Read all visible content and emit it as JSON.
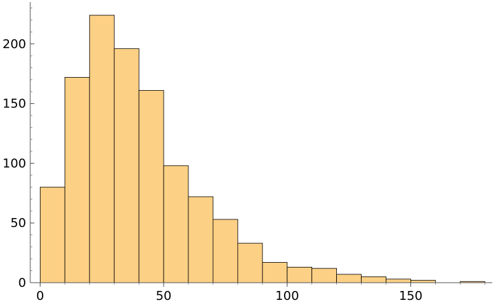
{
  "chart_data": {
    "type": "bar",
    "subtype": "histogram",
    "bin_edges": [
      0,
      10,
      20,
      30,
      40,
      50,
      60,
      70,
      80,
      90,
      100,
      110,
      120,
      130,
      140,
      150,
      160,
      170,
      180
    ],
    "counts": [
      80,
      172,
      224,
      196,
      161,
      98,
      72,
      53,
      33,
      17,
      13,
      12,
      7,
      5,
      3,
      2,
      0,
      1
    ],
    "xlim": [
      -4,
      183
    ],
    "ylim": [
      0,
      235
    ],
    "xticks": [
      0,
      50,
      100,
      150
    ],
    "yticks": [
      0,
      50,
      100,
      150,
      200
    ],
    "x_minor_step": 10,
    "y_minor_step": 10,
    "title": "",
    "xlabel": "",
    "ylabel": "",
    "grid": false,
    "bar_fill": "#fcd085",
    "bar_edge": "#000000"
  }
}
